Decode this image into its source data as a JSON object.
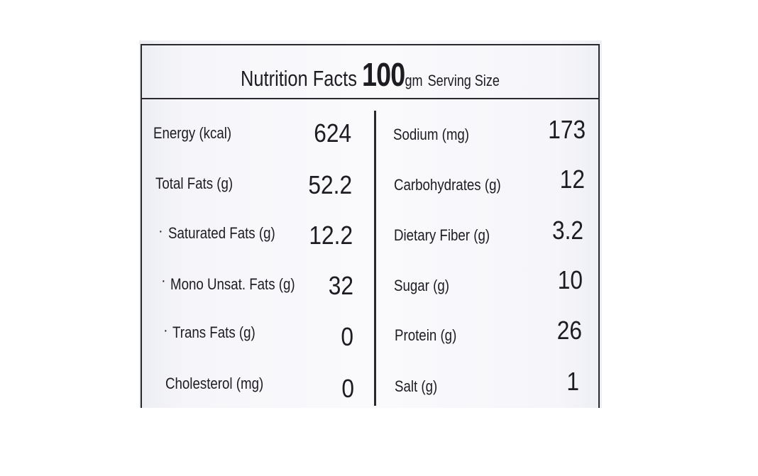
{
  "header": {
    "title": "Nutrition Facts",
    "amount": "100",
    "unit": "gm",
    "serving_label": "Serving Size"
  },
  "left_rows": [
    {
      "label": "Energy (kcal)",
      "value": "624",
      "sub": false
    },
    {
      "label": "Total Fats (g)",
      "value": "52.2",
      "sub": false
    },
    {
      "label": "Saturated Fats (g)",
      "value": "12.2",
      "sub": true
    },
    {
      "label": "Mono Unsat. Fats (g)",
      "value": "32",
      "sub": true
    },
    {
      "label": "Trans Fats (g)",
      "value": "0",
      "sub": true
    },
    {
      "label": "Cholesterol (mg)",
      "value": "0",
      "sub": false
    }
  ],
  "right_rows": [
    {
      "label": "Sodium (mg)",
      "value": "173"
    },
    {
      "label": "Carbohydrates (g)",
      "value": "12"
    },
    {
      "label": "Dietary Fiber (g)",
      "value": "3.2"
    },
    {
      "label": "Sugar (g)",
      "value": "10"
    },
    {
      "label": "Protein (g)",
      "value": "26"
    },
    {
      "label": "Salt (g)",
      "value": "1"
    }
  ],
  "sub_marker": "·",
  "colors": {
    "text": "#1d1d21",
    "rule": "#2a2a2e",
    "background": "#fafafd"
  }
}
